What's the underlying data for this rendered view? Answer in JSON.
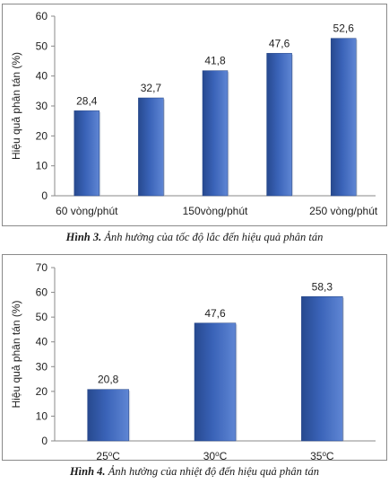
{
  "chart_data": [
    {
      "type": "bar",
      "categories": [
        "60 vòng/phút",
        "",
        "150vòng/phút",
        "",
        "250 vòng/phút"
      ],
      "values": [
        28.4,
        32.7,
        41.8,
        47.6,
        52.6
      ],
      "value_labels": [
        "28,4",
        "32,7",
        "41,8",
        "47,6",
        "52,6"
      ],
      "ylabel": "Hiệu quả phân tán (%)",
      "ylim": [
        0,
        60
      ],
      "yticks": [
        0,
        10,
        20,
        30,
        40,
        50,
        60
      ],
      "grid": false,
      "bar_color": "#3a63b8"
    },
    {
      "type": "bar",
      "categories": [
        "25",
        "30",
        "35"
      ],
      "category_unit_sup": "o",
      "category_unit": "C",
      "values": [
        20.8,
        47.6,
        58.3
      ],
      "value_labels": [
        "20,8",
        "47,6",
        "58,3"
      ],
      "ylabel": "Hiệu quả phân tán (%)",
      "ylim": [
        0,
        70
      ],
      "yticks": [
        0,
        10,
        20,
        30,
        40,
        50,
        60,
        70
      ],
      "grid": false,
      "bar_color": "#3a63b8"
    }
  ],
  "captions": [
    {
      "label": "Hình 3.",
      "text": " Ảnh hưởng của tốc độ lắc đến hiệu quả phân tán"
    },
    {
      "label": "Hình 4.",
      "text": " Ảnh hưởng của nhiệt độ đến hiệu quả phân tán"
    }
  ]
}
